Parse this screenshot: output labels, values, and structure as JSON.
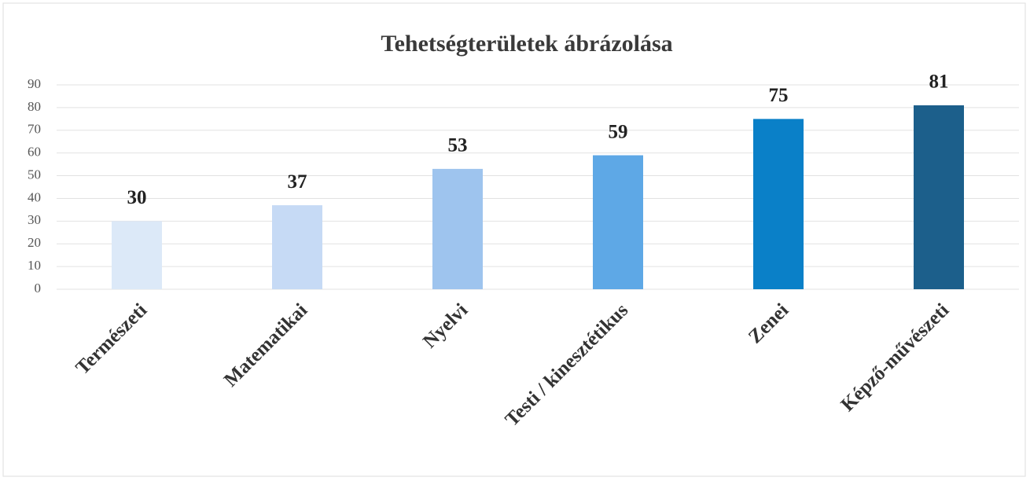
{
  "chart_data": {
    "type": "bar",
    "title": "Tehetségterületek ábrázolása",
    "categories": [
      "Természeti",
      "Matematikai",
      "Nyelvi",
      "Testi / kinesztétikus",
      "Zenei",
      "Képző-művészeti"
    ],
    "values": [
      30,
      37,
      53,
      59,
      75,
      81
    ],
    "colors": [
      "#dce9f8",
      "#c6daf5",
      "#9ec4ee",
      "#5ea8e6",
      "#0a80c8",
      "#1c5f8b"
    ],
    "ylim": [
      0,
      90
    ],
    "yticks": [
      0,
      10,
      20,
      30,
      40,
      50,
      60,
      70,
      80,
      90
    ],
    "grid": true
  }
}
